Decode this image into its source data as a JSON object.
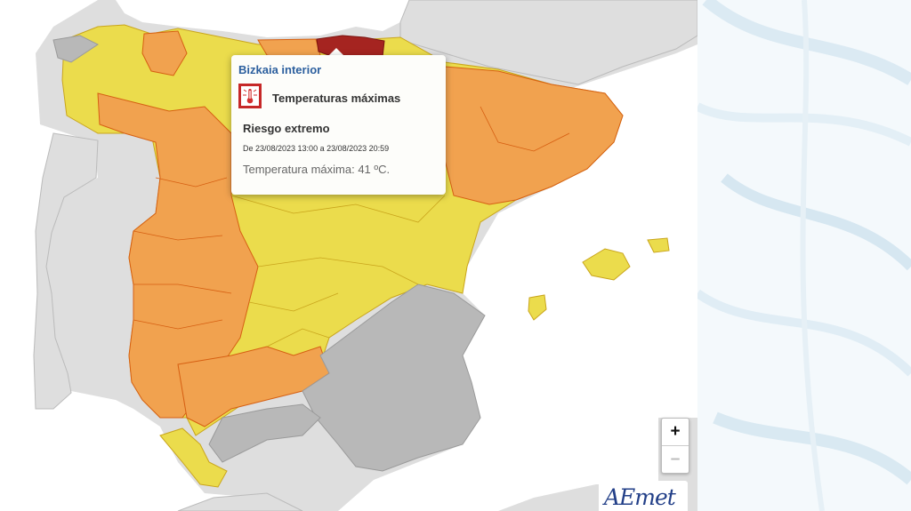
{
  "popup": {
    "zone": "Bizkaia interior",
    "phenomenon": "Temperaturas máximas",
    "level": "Riesgo extremo",
    "dates": "De 23/08/2023 13:00 a 23/08/2023 20:59",
    "description": "Temperatura máxima: 41 ºC.",
    "icon": "thermometer-icon"
  },
  "zoom": {
    "in_label": "+",
    "out_label": "–"
  },
  "logo": {
    "text": "AEmet"
  },
  "colors": {
    "extreme": "#a52420",
    "orange": "#f1a24f",
    "yellow": "#ebdc4c",
    "no_warning": "#b8b8b8",
    "land": "#dedede",
    "sea": "#ffffff"
  }
}
